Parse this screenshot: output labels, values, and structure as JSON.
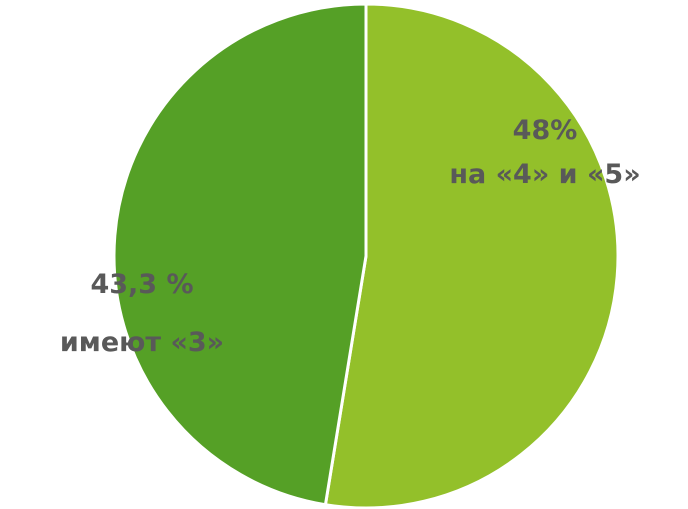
{
  "chart_data": {
    "type": "pie",
    "slices": [
      {
        "value": 48,
        "percent_label": "48%",
        "text_label": "на «4» и «5»",
        "color": "#93c02a"
      },
      {
        "value": 43.3,
        "percent_label": "43,3 %",
        "text_label": "имеют «3»",
        "color": "#55a026"
      }
    ],
    "label_color": "#595959",
    "legend": "none"
  }
}
